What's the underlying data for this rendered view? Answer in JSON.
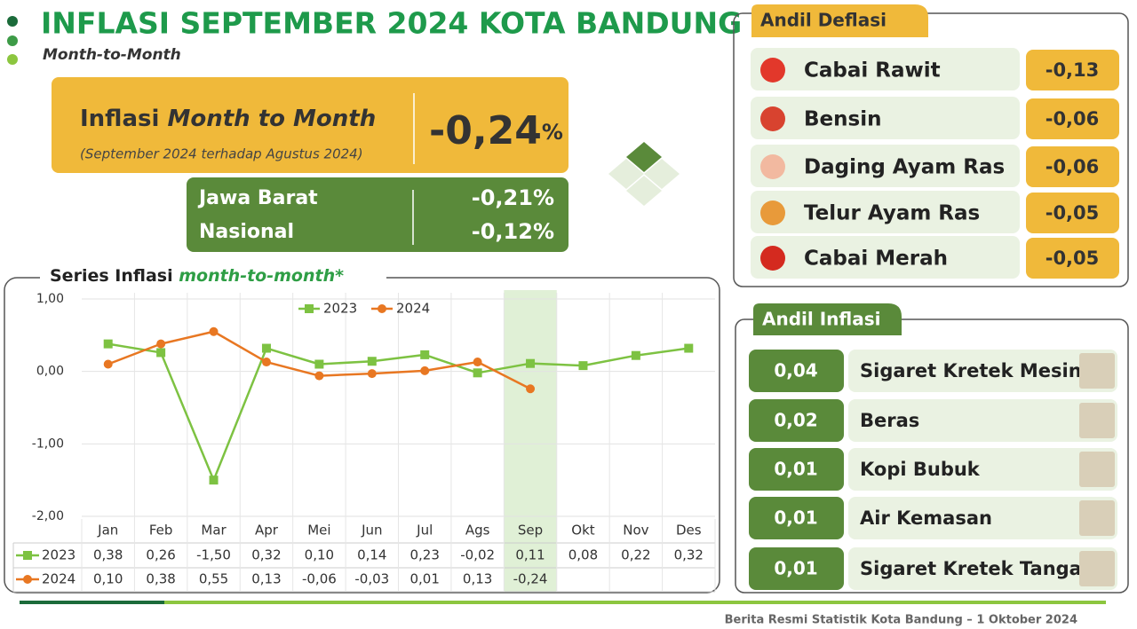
{
  "header": {
    "title": "INFLASI SEPTEMBER 2024 KOTA BANDUNG",
    "subtitle": "Month-to-Month"
  },
  "mtm": {
    "label": "Inflasi",
    "label_emphasis": "Month to Month",
    "period": "(September 2024 terhadap Agustus 2024)",
    "value": "-0,24",
    "unit": "%"
  },
  "regions": [
    {
      "name": "Jawa Barat",
      "value": "-0,21%"
    },
    {
      "name": "Nasional",
      "value": "-0,12%"
    }
  ],
  "chart_data": {
    "type": "line",
    "title": "Series Inflasi",
    "title_emphasis": "month-to-month*",
    "categories": [
      "Jan",
      "Feb",
      "Mar",
      "Apr",
      "Mei",
      "Jun",
      "Jul",
      "Ags",
      "Sep",
      "Okt",
      "Nov",
      "Des"
    ],
    "series": [
      {
        "name": "2023",
        "color": "#7dc242",
        "marker": "square",
        "values": [
          0.38,
          0.26,
          -1.5,
          0.32,
          0.1,
          0.14,
          0.23,
          -0.02,
          0.11,
          0.08,
          0.22,
          0.32
        ],
        "value_labels": [
          "0,38",
          "0,26",
          "-1,50",
          "0,32",
          "0,10",
          "0,14",
          "0,23",
          "-0,02",
          "0,11",
          "0,08",
          "0,22",
          "0,32"
        ]
      },
      {
        "name": "2024",
        "color": "#e87722",
        "marker": "circle",
        "values": [
          0.1,
          0.38,
          0.55,
          0.13,
          -0.06,
          -0.03,
          0.01,
          0.13,
          -0.24,
          null,
          null,
          null
        ],
        "value_labels": [
          "0,10",
          "0,38",
          "0,55",
          "0,13",
          "-0,06",
          "-0,03",
          "0,01",
          "0,13",
          "-0,24",
          null,
          null,
          null
        ]
      }
    ],
    "ylim": [
      -2,
      1
    ],
    "yticks": [
      {
        "value": 1,
        "label": "1,00"
      },
      {
        "value": 0,
        "label": "0,00"
      },
      {
        "value": -1,
        "label": "-1,00"
      },
      {
        "value": -2,
        "label": "-2,00"
      }
    ],
    "grid": true,
    "highlight": "Sep",
    "legend": "top"
  },
  "deflasi": {
    "title": "Andil Deflasi",
    "items": [
      {
        "name": "Cabai Rawit",
        "value": "-0,13"
      },
      {
        "name": "Bensin",
        "value": "-0,06"
      },
      {
        "name": "Daging Ayam Ras",
        "value": "-0,06"
      },
      {
        "name": "Telur Ayam Ras",
        "value": "-0,05"
      },
      {
        "name": "Cabai Merah",
        "value": "-0,05"
      }
    ]
  },
  "inflasi": {
    "title": "Andil Inflasi",
    "items": [
      {
        "value": "0,04",
        "name": "Sigaret Kretek Mesin"
      },
      {
        "value": "0,02",
        "name": "Beras"
      },
      {
        "value": "0,01",
        "name": "Kopi Bubuk"
      },
      {
        "value": "0,01",
        "name": "Air Kemasan"
      },
      {
        "value": "0,01",
        "name": "Sigaret Kretek Tangan"
      }
    ]
  },
  "footer": "Berita Resmi Statistik Kota Bandung –  1 Oktober 2024"
}
